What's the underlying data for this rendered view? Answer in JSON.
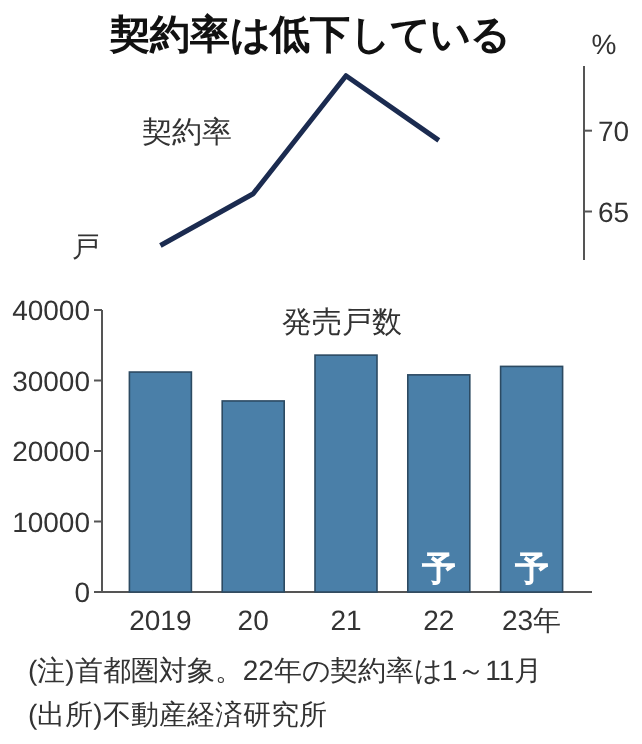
{
  "chart_data": [
    {
      "type": "line",
      "title": "契約率は低下している",
      "ylabel": "%",
      "categories": [
        null,
        null,
        null,
        null,
        null
      ],
      "series": [
        {
          "name": "契約率",
          "color": "#1b2b50",
          "values": [
            62.9,
            66.1,
            73.4,
            69.4,
            null
          ]
        }
      ],
      "ylim": [
        62,
        74
      ],
      "yticks": [
        65,
        70
      ],
      "tick_labels": "y"
    },
    {
      "type": "bar",
      "title": "発売戸数",
      "ylabel": "戸",
      "categories": [
        "2019",
        "20",
        "21",
        "22",
        "23年"
      ],
      "series": [
        {
          "color": "#4a7fa8",
          "values": [
            31200,
            27100,
            33600,
            30800,
            32000
          ],
          "value_labels": [
            null,
            null,
            null,
            "予",
            "予"
          ]
        }
      ],
      "ylim": [
        0,
        40000
      ],
      "yticks": [
        0,
        10000,
        20000,
        30000,
        40000
      ],
      "annotations": [
        "(注)首都圏対象。22年の契約率は1～11月",
        "(出所)不動産経済研究所"
      ]
    }
  ]
}
